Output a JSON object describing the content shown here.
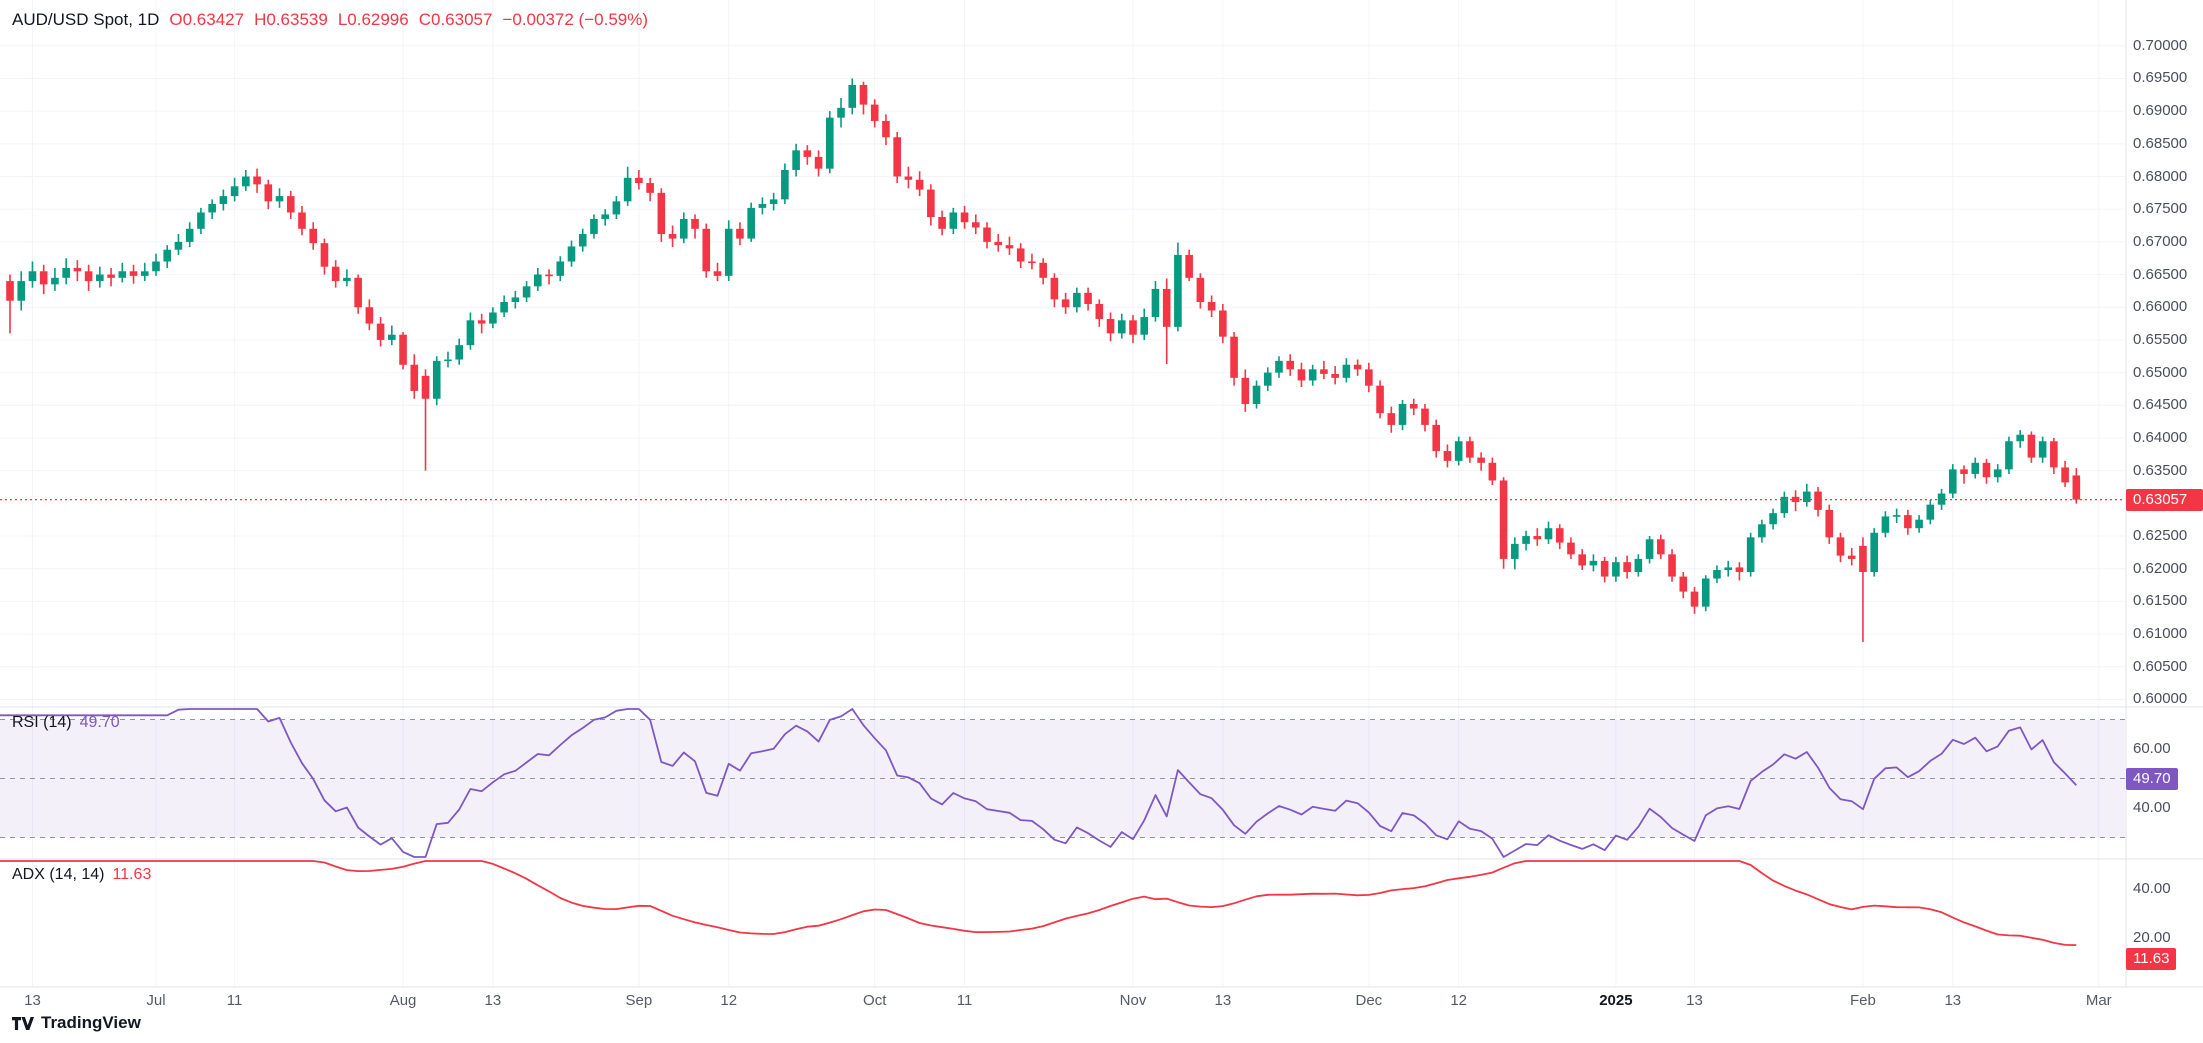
{
  "header": {
    "symbol": "AUD/USD Spot, 1D",
    "open": "O0.63427",
    "high": "H0.63539",
    "low": "L0.62996",
    "close": "C0.63057",
    "change": "−0.00372 (−0.59%)"
  },
  "colors": {
    "up": "#089981",
    "down": "#F23645",
    "rsi_line": "#7E57C2",
    "adx_line": "#F23645",
    "band_fill": "rgba(126,87,194,0.09)",
    "level_dash": "#8f96a3",
    "grid": "#f2f4f9",
    "separator": "#e0e3eb"
  },
  "price_axis": {
    "current_price_label": "0.63057",
    "ticks": [
      "0.70000",
      "0.69500",
      "0.69000",
      "0.68500",
      "0.68000",
      "0.67500",
      "0.67000",
      "0.66500",
      "0.66000",
      "0.65500",
      "0.65000",
      "0.64500",
      "0.64000",
      "0.63500",
      "0.62500",
      "0.62000",
      "0.61500",
      "0.61000",
      "0.60500",
      "0.60000"
    ]
  },
  "rsi_pane": {
    "label": "RSI (14)",
    "value": "49.70",
    "badge": "49.70",
    "ticks": [
      "60.00",
      "40.00"
    ]
  },
  "adx_pane": {
    "label": "ADX (14, 14)",
    "value": "11.63",
    "badge": "11.63",
    "ticks": [
      "40.00",
      "20.00"
    ]
  },
  "time_axis": {
    "ticks": [
      [
        "13",
        2
      ],
      [
        "Jul",
        13
      ],
      [
        "11",
        20
      ],
      [
        "Aug",
        35
      ],
      [
        "13",
        43
      ],
      [
        "Sep",
        56
      ],
      [
        "12",
        64
      ],
      [
        "Oct",
        77
      ],
      [
        "11",
        85
      ],
      [
        "Nov",
        100
      ],
      [
        "13",
        108
      ],
      [
        "Dec",
        121
      ],
      [
        "12",
        129
      ],
      [
        "2025",
        143
      ],
      [
        "13",
        150
      ],
      [
        "Feb",
        165
      ],
      [
        "13",
        173
      ],
      [
        "Mar",
        186
      ]
    ]
  },
  "watermark": {
    "brand": "TradingView"
  },
  "chart_data": {
    "type": "candlestick",
    "title": "AUD/USD Spot, 1D",
    "symbol": "AUD/USD",
    "interval": "1D",
    "last": {
      "open": 0.63427,
      "high": 0.63539,
      "low": 0.62996,
      "close": 0.63057,
      "change": -0.00372,
      "change_pct": -0.59
    },
    "price_range": [
      0.6,
      0.7
    ],
    "x_tick_labels": [
      "13",
      "Jul",
      "11",
      "Aug",
      "13",
      "Sep",
      "12",
      "Oct",
      "11",
      "Nov",
      "13",
      "Dec",
      "12",
      "2025",
      "13",
      "Feb",
      "13",
      "Mar"
    ],
    "candles": [
      [
        0.664,
        0.665,
        0.656,
        0.661
      ],
      [
        0.661,
        0.6655,
        0.6595,
        0.664
      ],
      [
        0.664,
        0.667,
        0.663,
        0.6655
      ],
      [
        0.6655,
        0.6665,
        0.662,
        0.6635
      ],
      [
        0.6635,
        0.666,
        0.6625,
        0.6645
      ],
      [
        0.6645,
        0.6675,
        0.6635,
        0.666
      ],
      [
        0.666,
        0.6672,
        0.664,
        0.6655
      ],
      [
        0.6655,
        0.6665,
        0.6625,
        0.664
      ],
      [
        0.664,
        0.6662,
        0.663,
        0.665
      ],
      [
        0.665,
        0.666,
        0.6632,
        0.6645
      ],
      [
        0.6645,
        0.6668,
        0.6638,
        0.6655
      ],
      [
        0.6655,
        0.6665,
        0.6636,
        0.6648
      ],
      [
        0.6648,
        0.6668,
        0.664,
        0.6655
      ],
      [
        0.6655,
        0.6682,
        0.6648,
        0.667
      ],
      [
        0.667,
        0.6695,
        0.666,
        0.6688
      ],
      [
        0.6688,
        0.6712,
        0.668,
        0.67
      ],
      [
        0.67,
        0.673,
        0.6692,
        0.672
      ],
      [
        0.672,
        0.6752,
        0.6712,
        0.6745
      ],
      [
        0.6745,
        0.6765,
        0.6735,
        0.6758
      ],
      [
        0.6758,
        0.678,
        0.6748,
        0.677
      ],
      [
        0.677,
        0.6798,
        0.6762,
        0.6785
      ],
      [
        0.6785,
        0.681,
        0.6778,
        0.68
      ],
      [
        0.68,
        0.6812,
        0.6775,
        0.6788
      ],
      [
        0.6788,
        0.6795,
        0.675,
        0.6762
      ],
      [
        0.6762,
        0.6782,
        0.6752,
        0.677
      ],
      [
        0.677,
        0.6778,
        0.6735,
        0.6745
      ],
      [
        0.6745,
        0.6755,
        0.671,
        0.672
      ],
      [
        0.672,
        0.673,
        0.6688,
        0.6698
      ],
      [
        0.6698,
        0.6705,
        0.665,
        0.6662
      ],
      [
        0.6662,
        0.6672,
        0.663,
        0.664
      ],
      [
        0.664,
        0.6658,
        0.6632,
        0.6645
      ],
      [
        0.6645,
        0.665,
        0.659,
        0.66
      ],
      [
        0.66,
        0.6612,
        0.6565,
        0.6575
      ],
      [
        0.6575,
        0.6585,
        0.654,
        0.655
      ],
      [
        0.655,
        0.6572,
        0.6542,
        0.6558
      ],
      [
        0.6558,
        0.6562,
        0.6505,
        0.6512
      ],
      [
        0.6512,
        0.6528,
        0.646,
        0.6472
      ],
      [
        0.6495,
        0.6505,
        0.635,
        0.646
      ],
      [
        0.646,
        0.6525,
        0.645,
        0.6518
      ],
      [
        0.6518,
        0.6532,
        0.6508,
        0.652
      ],
      [
        0.652,
        0.6552,
        0.6512,
        0.6542
      ],
      [
        0.6542,
        0.6592,
        0.6535,
        0.658
      ],
      [
        0.658,
        0.659,
        0.656,
        0.6575
      ],
      [
        0.6575,
        0.66,
        0.6568,
        0.6592
      ],
      [
        0.6592,
        0.6618,
        0.6585,
        0.6608
      ],
      [
        0.6608,
        0.6625,
        0.6598,
        0.6615
      ],
      [
        0.6615,
        0.664,
        0.6608,
        0.6632
      ],
      [
        0.6632,
        0.666,
        0.6625,
        0.665
      ],
      [
        0.665,
        0.6658,
        0.6635,
        0.6648
      ],
      [
        0.6648,
        0.6678,
        0.664,
        0.667
      ],
      [
        0.667,
        0.6702,
        0.6662,
        0.6693
      ],
      [
        0.6693,
        0.672,
        0.6685,
        0.6712
      ],
      [
        0.6712,
        0.6742,
        0.6705,
        0.6735
      ],
      [
        0.6735,
        0.675,
        0.6725,
        0.6742
      ],
      [
        0.6742,
        0.677,
        0.6735,
        0.6762
      ],
      [
        0.6762,
        0.6815,
        0.6755,
        0.6798
      ],
      [
        0.6798,
        0.681,
        0.678,
        0.679
      ],
      [
        0.679,
        0.6798,
        0.6762,
        0.6775
      ],
      [
        0.6775,
        0.6782,
        0.67,
        0.6712
      ],
      [
        0.6712,
        0.6725,
        0.6692,
        0.6705
      ],
      [
        0.6705,
        0.6745,
        0.6698,
        0.6735
      ],
      [
        0.6735,
        0.6742,
        0.6705,
        0.672
      ],
      [
        0.672,
        0.6728,
        0.6645,
        0.6655
      ],
      [
        0.6655,
        0.6668,
        0.664,
        0.6648
      ],
      [
        0.6648,
        0.6733,
        0.664,
        0.672
      ],
      [
        0.672,
        0.673,
        0.6695,
        0.6705
      ],
      [
        0.6705,
        0.676,
        0.67,
        0.6752
      ],
      [
        0.6752,
        0.6768,
        0.6742,
        0.6758
      ],
      [
        0.6758,
        0.6775,
        0.6748,
        0.6765
      ],
      [
        0.6765,
        0.682,
        0.6758,
        0.681
      ],
      [
        0.681,
        0.685,
        0.68,
        0.684
      ],
      [
        0.684,
        0.6848,
        0.6818,
        0.683
      ],
      [
        0.683,
        0.684,
        0.68,
        0.6812
      ],
      [
        0.6812,
        0.69,
        0.6805,
        0.689
      ],
      [
        0.689,
        0.692,
        0.6875,
        0.6905
      ],
      [
        0.6905,
        0.695,
        0.6895,
        0.694
      ],
      [
        0.694,
        0.6945,
        0.6895,
        0.691
      ],
      [
        0.691,
        0.6918,
        0.6875,
        0.6885
      ],
      [
        0.6885,
        0.6895,
        0.6848,
        0.686
      ],
      [
        0.686,
        0.6868,
        0.679,
        0.68
      ],
      [
        0.68,
        0.6815,
        0.6782,
        0.6795
      ],
      [
        0.6795,
        0.6808,
        0.677,
        0.678
      ],
      [
        0.678,
        0.6788,
        0.6725,
        0.6738
      ],
      [
        0.6738,
        0.6748,
        0.671,
        0.672
      ],
      [
        0.672,
        0.6752,
        0.6712,
        0.6745
      ],
      [
        0.6745,
        0.6755,
        0.672,
        0.673
      ],
      [
        0.673,
        0.6742,
        0.6712,
        0.6722
      ],
      [
        0.6722,
        0.673,
        0.669,
        0.67
      ],
      [
        0.67,
        0.6712,
        0.6685,
        0.6695
      ],
      [
        0.6695,
        0.6708,
        0.668,
        0.669
      ],
      [
        0.669,
        0.6698,
        0.666,
        0.667
      ],
      [
        0.667,
        0.6682,
        0.6658,
        0.6668
      ],
      [
        0.6668,
        0.6675,
        0.6635,
        0.6645
      ],
      [
        0.6645,
        0.6652,
        0.66,
        0.6612
      ],
      [
        0.6612,
        0.6622,
        0.659,
        0.66
      ],
      [
        0.66,
        0.663,
        0.6592,
        0.6622
      ],
      [
        0.6622,
        0.663,
        0.6595,
        0.6605
      ],
      [
        0.6605,
        0.6612,
        0.657,
        0.6582
      ],
      [
        0.6582,
        0.6592,
        0.6548,
        0.656
      ],
      [
        0.656,
        0.659,
        0.6552,
        0.658
      ],
      [
        0.658,
        0.6588,
        0.6545,
        0.6558
      ],
      [
        0.6558,
        0.6598,
        0.655,
        0.6585
      ],
      [
        0.6585,
        0.664,
        0.6578,
        0.6628
      ],
      [
        0.6628,
        0.6644,
        0.6513,
        0.657
      ],
      [
        0.657,
        0.6699,
        0.6563,
        0.668
      ],
      [
        0.668,
        0.6688,
        0.664,
        0.6645
      ],
      [
        0.6645,
        0.6652,
        0.6598,
        0.6608
      ],
      [
        0.6608,
        0.6618,
        0.6585,
        0.6595
      ],
      [
        0.6595,
        0.6605,
        0.6545,
        0.6555
      ],
      [
        0.6555,
        0.6562,
        0.648,
        0.6492
      ],
      [
        0.6492,
        0.6505,
        0.644,
        0.6452
      ],
      [
        0.6452,
        0.6488,
        0.6445,
        0.648
      ],
      [
        0.648,
        0.6508,
        0.6472,
        0.65
      ],
      [
        0.65,
        0.6525,
        0.6492,
        0.6518
      ],
      [
        0.6518,
        0.6528,
        0.6495,
        0.6505
      ],
      [
        0.6505,
        0.6515,
        0.6478,
        0.6488
      ],
      [
        0.6488,
        0.6512,
        0.648,
        0.6505
      ],
      [
        0.6505,
        0.6518,
        0.649,
        0.6498
      ],
      [
        0.6498,
        0.651,
        0.6482,
        0.6492
      ],
      [
        0.6492,
        0.6522,
        0.6485,
        0.6512
      ],
      [
        0.6512,
        0.652,
        0.6495,
        0.6505
      ],
      [
        0.6505,
        0.6515,
        0.647,
        0.648
      ],
      [
        0.648,
        0.6488,
        0.643,
        0.6438
      ],
      [
        0.6438,
        0.6448,
        0.6408,
        0.642
      ],
      [
        0.642,
        0.6458,
        0.6412,
        0.6452
      ],
      [
        0.6452,
        0.646,
        0.6435,
        0.6445
      ],
      [
        0.6445,
        0.6452,
        0.641,
        0.642
      ],
      [
        0.642,
        0.6428,
        0.637,
        0.638
      ],
      [
        0.638,
        0.639,
        0.6355,
        0.6365
      ],
      [
        0.6365,
        0.6402,
        0.6358,
        0.6395
      ],
      [
        0.6395,
        0.6402,
        0.6362,
        0.637
      ],
      [
        0.637,
        0.6378,
        0.635,
        0.6362
      ],
      [
        0.6362,
        0.637,
        0.6328,
        0.6335
      ],
      [
        0.6335,
        0.634,
        0.62,
        0.6215
      ],
      [
        0.6215,
        0.6248,
        0.6199,
        0.6238
      ],
      [
        0.6238,
        0.6258,
        0.6228,
        0.625
      ],
      [
        0.625,
        0.6262,
        0.6235,
        0.6245
      ],
      [
        0.6245,
        0.6272,
        0.6238,
        0.6262
      ],
      [
        0.6262,
        0.6268,
        0.623,
        0.624
      ],
      [
        0.624,
        0.6248,
        0.6215,
        0.6222
      ],
      [
        0.6222,
        0.623,
        0.6198,
        0.6205
      ],
      [
        0.6205,
        0.6222,
        0.6196,
        0.6212
      ],
      [
        0.6212,
        0.6218,
        0.6179,
        0.6188
      ],
      [
        0.6188,
        0.6218,
        0.618,
        0.621
      ],
      [
        0.621,
        0.622,
        0.6185,
        0.6195
      ],
      [
        0.6195,
        0.6222,
        0.6188,
        0.6215
      ],
      [
        0.6215,
        0.625,
        0.6208,
        0.6245
      ],
      [
        0.6245,
        0.6252,
        0.6215,
        0.6222
      ],
      [
        0.6222,
        0.623,
        0.618,
        0.6188
      ],
      [
        0.6188,
        0.6195,
        0.6155,
        0.6165
      ],
      [
        0.6165,
        0.6172,
        0.6131,
        0.6142
      ],
      [
        0.6142,
        0.619,
        0.6135,
        0.6185
      ],
      [
        0.6185,
        0.6205,
        0.6178,
        0.6198
      ],
      [
        0.6198,
        0.6212,
        0.6188,
        0.6202
      ],
      [
        0.6202,
        0.621,
        0.6182,
        0.6195
      ],
      [
        0.6195,
        0.6255,
        0.6188,
        0.6248
      ],
      [
        0.6248,
        0.6275,
        0.624,
        0.6268
      ],
      [
        0.6268,
        0.6292,
        0.626,
        0.6285
      ],
      [
        0.6285,
        0.6318,
        0.6278,
        0.631
      ],
      [
        0.631,
        0.632,
        0.6288,
        0.6302
      ],
      [
        0.6302,
        0.633,
        0.6295,
        0.6318
      ],
      [
        0.6318,
        0.6325,
        0.628,
        0.629
      ],
      [
        0.629,
        0.6298,
        0.6238,
        0.6248
      ],
      [
        0.6248,
        0.6255,
        0.621,
        0.622
      ],
      [
        0.622,
        0.6232,
        0.6205,
        0.6215
      ],
      [
        0.6235,
        0.6248,
        0.6088,
        0.6195
      ],
      [
        0.6195,
        0.6262,
        0.6188,
        0.6255
      ],
      [
        0.6255,
        0.6288,
        0.6248,
        0.628
      ],
      [
        0.628,
        0.6292,
        0.627,
        0.6282
      ],
      [
        0.6282,
        0.629,
        0.6252,
        0.6262
      ],
      [
        0.6262,
        0.6282,
        0.6255,
        0.6275
      ],
      [
        0.6275,
        0.6305,
        0.6268,
        0.6298
      ],
      [
        0.6298,
        0.6322,
        0.629,
        0.6315
      ],
      [
        0.6315,
        0.636,
        0.6308,
        0.6352
      ],
      [
        0.6352,
        0.6358,
        0.633,
        0.6345
      ],
      [
        0.6345,
        0.637,
        0.6338,
        0.6362
      ],
      [
        0.6362,
        0.6368,
        0.633,
        0.634
      ],
      [
        0.634,
        0.636,
        0.6332,
        0.6352
      ],
      [
        0.6352,
        0.6402,
        0.6345,
        0.6395
      ],
      [
        0.6395,
        0.6412,
        0.6385,
        0.6405
      ],
      [
        0.6405,
        0.641,
        0.6362,
        0.637
      ],
      [
        0.637,
        0.6402,
        0.6362,
        0.6395
      ],
      [
        0.6395,
        0.64,
        0.6345,
        0.6355
      ],
      [
        0.6355,
        0.6365,
        0.6325,
        0.6332
      ],
      [
        0.63427,
        0.63539,
        0.62996,
        0.63057
      ]
    ],
    "indicators": [
      {
        "type": "rsi",
        "period": 14,
        "value": 49.7,
        "levels": [
          70,
          50,
          30
        ],
        "band": [
          30,
          70
        ],
        "visible_ticks": [
          60,
          40
        ]
      },
      {
        "type": "adx",
        "period": 14,
        "smoothing": 14,
        "value": 11.63,
        "visible_ticks": [
          40,
          20
        ]
      }
    ]
  }
}
